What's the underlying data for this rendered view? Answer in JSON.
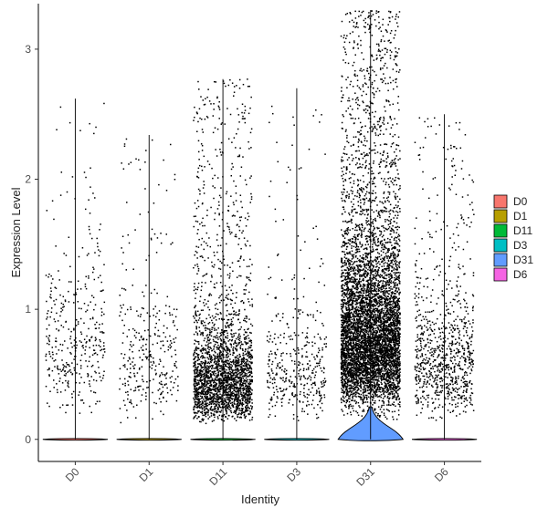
{
  "chart_data": {
    "type": "scatter",
    "subtype": "violin-jitter",
    "title": "",
    "xlabel": "Identity",
    "ylabel": "Expression Level",
    "ylim": [
      -0.17,
      3.35
    ],
    "yticks": [
      0,
      1,
      2,
      3
    ],
    "categories": [
      "D0",
      "D1",
      "D11",
      "D3",
      "D31",
      "D6"
    ],
    "series": [
      {
        "name": "D0",
        "color": "#F8766D",
        "max": 2.62,
        "dots_above_zero": 380,
        "center": 0.75
      },
      {
        "name": "D1",
        "color": "#B79F00",
        "max": 2.34,
        "dots_above_zero": 330,
        "center": 0.6
      },
      {
        "name": "D11",
        "color": "#00BA38",
        "max": 2.77,
        "dots_above_zero": 2600,
        "center": 0.45
      },
      {
        "name": "D3",
        "color": "#00BFC4",
        "max": 2.7,
        "dots_above_zero": 420,
        "center": 0.5
      },
      {
        "name": "D31",
        "color": "#619CFF",
        "max": 3.3,
        "dots_above_zero": 6200,
        "center": 0.8
      },
      {
        "name": "D6",
        "color": "#F564E3",
        "max": 2.5,
        "dots_above_zero": 900,
        "center": 0.6
      }
    ],
    "legend": {
      "position": "right",
      "entries": [
        "D0",
        "D1",
        "D11",
        "D3",
        "D31",
        "D6"
      ]
    },
    "grid": false
  }
}
